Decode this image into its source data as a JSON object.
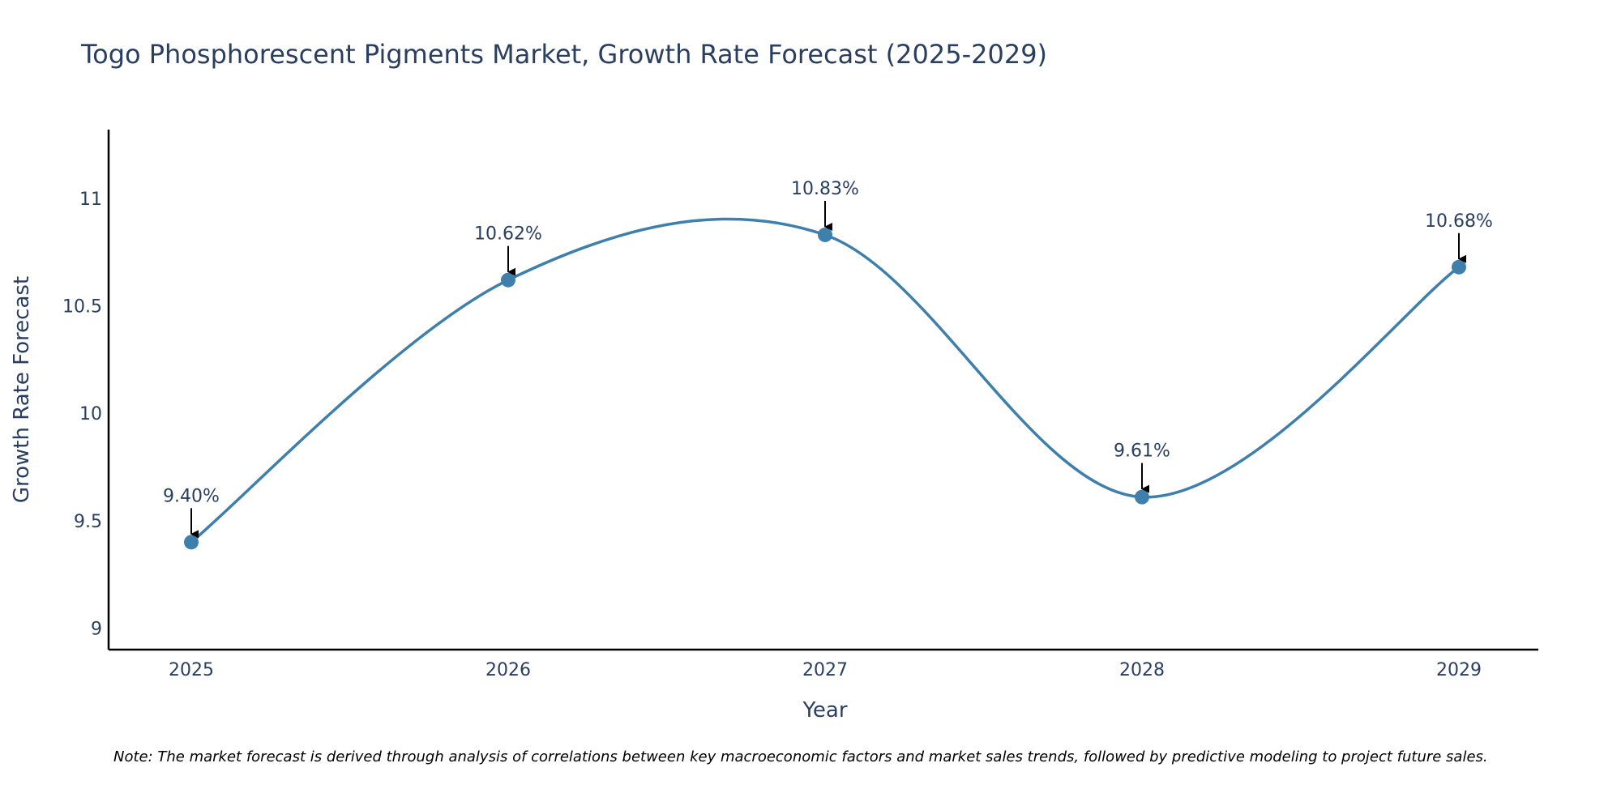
{
  "chart_data": {
    "type": "line",
    "title": "Togo Phosphorescent Pigments Market, Growth Rate Forecast (2025-2029)",
    "xlabel": "Year",
    "ylabel": "Growth Rate Forecast",
    "categories": [
      "2025",
      "2026",
      "2027",
      "2028",
      "2029"
    ],
    "values": [
      9.4,
      10.62,
      10.83,
      9.61,
      10.68
    ],
    "data_labels": [
      "9.40%",
      "10.62%",
      "10.83%",
      "9.61%",
      "10.68%"
    ],
    "ylim": [
      8.9,
      11.32
    ],
    "yticks": [
      9,
      9.5,
      10,
      10.5,
      11
    ],
    "ytick_labels": [
      "9",
      "9.5",
      "10",
      "10.5",
      "11"
    ],
    "grid": false,
    "line_shape": "spline",
    "colors": {
      "line": "#3f7fab",
      "marker": "#3f7fab",
      "axis": "#000000",
      "text": "#2a3f5f",
      "arrow": "#000000"
    }
  },
  "note": "Note: The market forecast is derived through analysis of correlations between key macroeconomic factors and market sales trends, followed by predictive modeling to project future sales."
}
